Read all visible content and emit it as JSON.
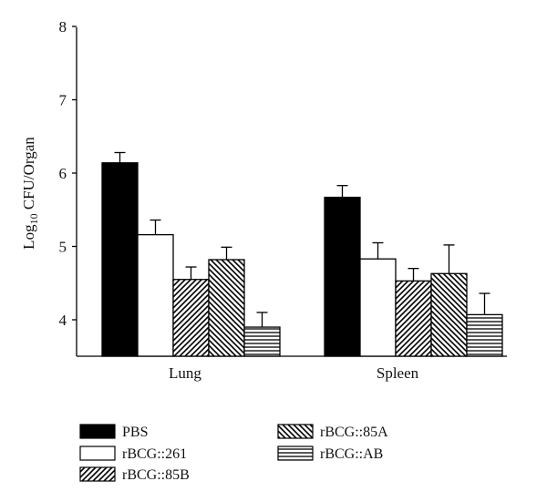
{
  "chart_data": {
    "type": "bar",
    "ylabel_main": "Log",
    "ylabel_sub": "10",
    "ylabel_rest": " CFU/Organ",
    "ylim": [
      3.5,
      8
    ],
    "yticks": [
      "4",
      "5",
      "6",
      "7",
      "8"
    ],
    "categories": [
      "Lung",
      "Spleen"
    ],
    "series": [
      {
        "name": "PBS",
        "values": [
          6.14,
          5.67
        ],
        "errors": [
          0.14,
          0.16
        ],
        "fill": "solid"
      },
      {
        "name": "rBCG::261",
        "values": [
          5.16,
          4.83
        ],
        "errors": [
          0.2,
          0.22
        ],
        "fill": "white"
      },
      {
        "name": "rBCG::85B",
        "values": [
          4.55,
          4.53
        ],
        "errors": [
          0.17,
          0.17
        ],
        "fill": "diag-right"
      },
      {
        "name": "rBCG::85A",
        "values": [
          4.82,
          4.63
        ],
        "errors": [
          0.17,
          0.39
        ],
        "fill": "diag-left"
      },
      {
        "name": "rBCG::AB",
        "values": [
          3.9,
          4.07
        ],
        "errors": [
          0.2,
          0.29
        ],
        "fill": "horizontal"
      }
    ],
    "grid": false,
    "legend_position": "bottom"
  }
}
